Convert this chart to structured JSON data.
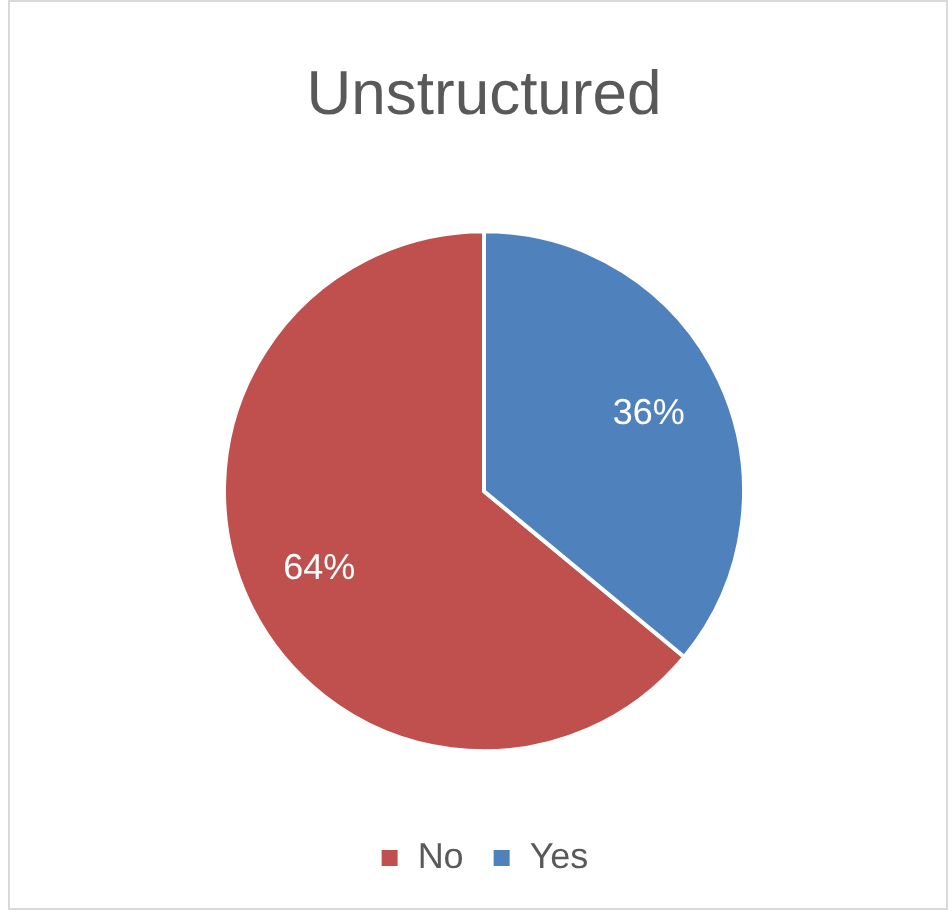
{
  "chart_data": {
    "type": "pie",
    "title": "Unstructured",
    "categories": [
      "No",
      "Yes"
    ],
    "values": [
      64,
      36
    ],
    "colors": [
      "#c0504d",
      "#4f81bd"
    ],
    "legend": "bottom",
    "data_labels": true,
    "value_labels": [
      "64%",
      "36%"
    ]
  }
}
